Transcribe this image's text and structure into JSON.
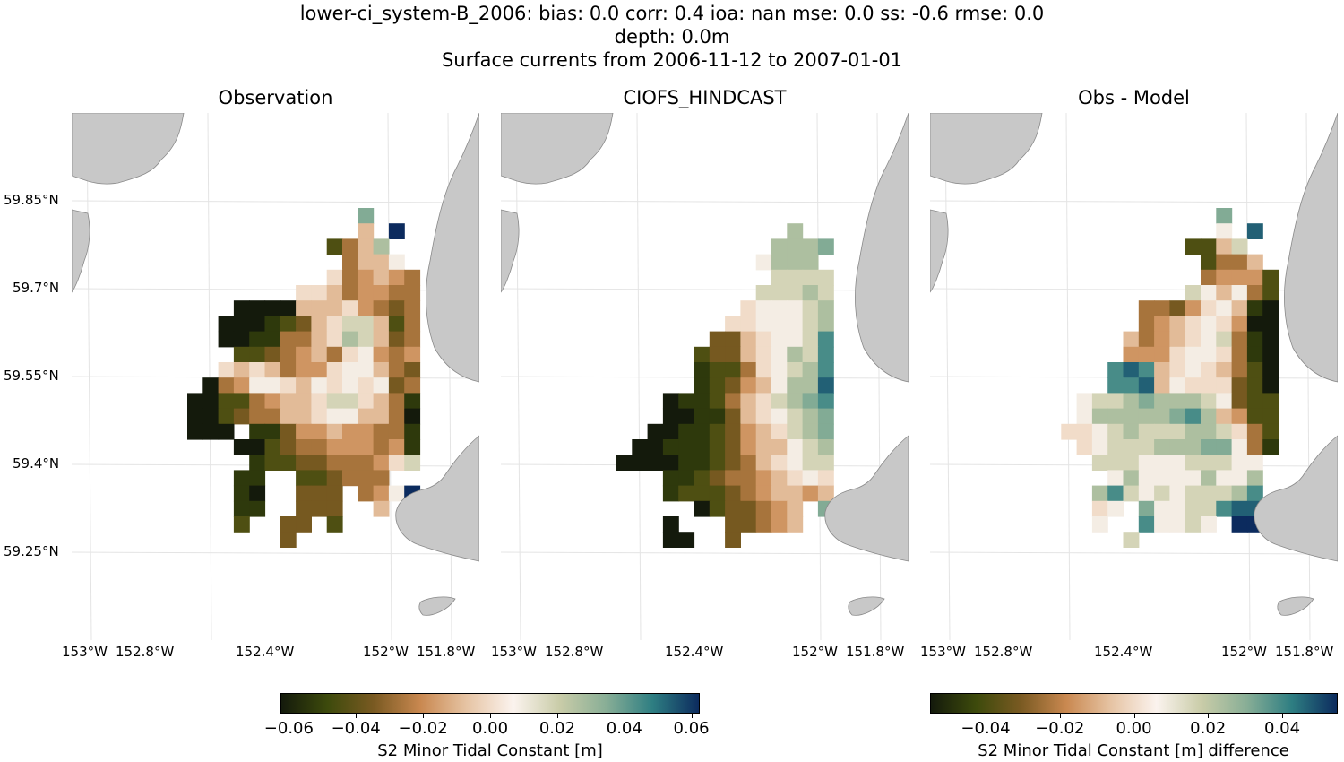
{
  "title_lines": [
    "lower-ci_system-B_2006: bias: 0.0  corr: 0.4  ioa: nan  mse: 0.0  ss: -0.6  rmse: 0.0",
    "depth: 0.0m",
    "Surface currents from 2006-11-12 to 2007-01-01"
  ],
  "colors": {
    "land": "#c8c8c8",
    "land_edge": "#8a8a8a",
    "grid": "#e4e4e4",
    "colormap": [
      "#141a0c",
      "#3d4a0c",
      "#7a5a22",
      "#c98850",
      "#e6c4a4",
      "#fbf3ee",
      "#c9cca8",
      "#88ae96",
      "#2e7e82",
      "#0c2b5e"
    ]
  },
  "chart_data": [
    {
      "type": "heatmap",
      "title": "Observation",
      "variable": "S2 Minor Tidal Constant [m]",
      "x_ticks": [
        "153°W",
        "152.8°W",
        "152.4°W",
        "152°W",
        "151.8°W"
      ],
      "y_ticks": [
        "59.85°N",
        "59.7°N",
        "59.55°N",
        "59.4°N",
        "59.25°N"
      ],
      "color_range": [
        -0.0625,
        0.0625
      ]
    },
    {
      "type": "heatmap",
      "title": "CIOFS_HINDCAST",
      "variable": "S2 Minor Tidal Constant [m]",
      "x_ticks": [
        "153°W",
        "152.8°W",
        "152.4°W",
        "152°W",
        "151.8°W"
      ],
      "color_range": [
        -0.0625,
        0.0625
      ]
    },
    {
      "type": "heatmap",
      "title": "Obs - Model",
      "variable": "S2 Minor Tidal Constant [m] difference",
      "x_ticks": [
        "153°W",
        "152.8°W",
        "152.4°W",
        "152°W",
        "151.8°W"
      ],
      "color_range": [
        -0.055,
        0.055
      ]
    }
  ],
  "colorbars": [
    {
      "ticks": [
        "−0.06",
        "−0.04",
        "−0.02",
        "0.00",
        "0.02",
        "0.04",
        "0.06"
      ],
      "tick_values": [
        -0.06,
        -0.04,
        -0.02,
        0.0,
        0.02,
        0.04,
        0.06
      ],
      "range": [
        -0.0625,
        0.0625
      ],
      "label": "S2 Minor Tidal Constant [m]"
    },
    {
      "ticks": [
        "−0.04",
        "−0.02",
        "0.00",
        "0.02",
        "0.04"
      ],
      "tick_values": [
        -0.04,
        -0.02,
        0.0,
        0.02,
        0.04
      ],
      "range": [
        -0.055,
        0.055
      ],
      "label": "S2 Minor Tidal Constant [m] difference"
    }
  ]
}
